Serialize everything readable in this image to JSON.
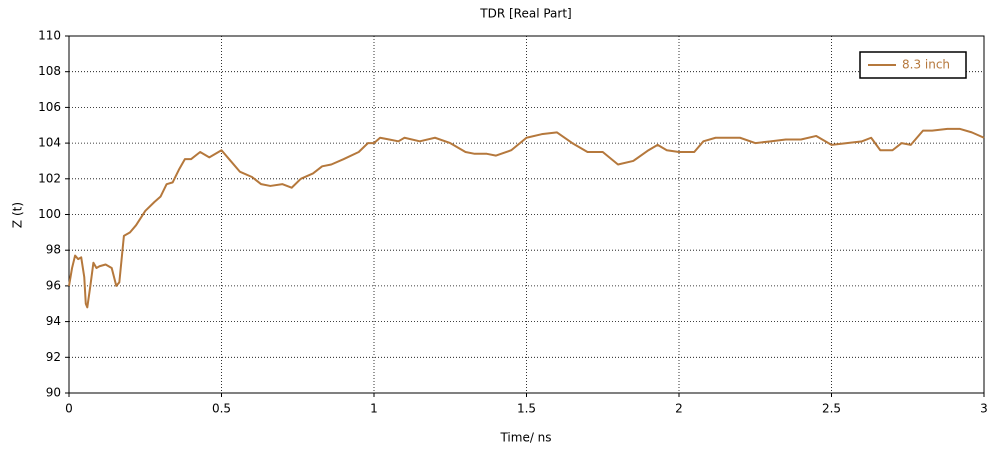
{
  "chart_data": {
    "type": "line",
    "title": "TDR [Real Part]",
    "x_label": "Time/ ns",
    "y_label": "Z (t)",
    "xlim": [
      0,
      3
    ],
    "ylim": [
      90,
      110
    ],
    "xticks": [
      0,
      0.5,
      1,
      1.5,
      2,
      2.5,
      3
    ],
    "yticks": [
      90,
      92,
      94,
      96,
      98,
      100,
      102,
      104,
      106,
      108,
      110
    ],
    "grid": true,
    "legend": "top-right",
    "x": [
      0,
      0.01,
      0.02,
      0.03,
      0.04,
      0.05,
      0.055,
      0.06,
      0.07,
      0.08,
      0.09,
      0.1,
      0.12,
      0.14,
      0.155,
      0.165,
      0.18,
      0.2,
      0.22,
      0.25,
      0.28,
      0.3,
      0.32,
      0.34,
      0.36,
      0.38,
      0.4,
      0.43,
      0.46,
      0.5,
      0.53,
      0.56,
      0.6,
      0.63,
      0.66,
      0.7,
      0.73,
      0.76,
      0.8,
      0.83,
      0.86,
      0.9,
      0.95,
      0.98,
      1.0,
      1.02,
      1.05,
      1.08,
      1.1,
      1.15,
      1.2,
      1.25,
      1.3,
      1.33,
      1.37,
      1.4,
      1.45,
      1.5,
      1.55,
      1.6,
      1.65,
      1.7,
      1.75,
      1.8,
      1.85,
      1.9,
      1.93,
      1.96,
      2.0,
      2.05,
      2.08,
      2.12,
      2.2,
      2.25,
      2.3,
      2.35,
      2.4,
      2.45,
      2.5,
      2.55,
      2.6,
      2.63,
      2.66,
      2.7,
      2.73,
      2.76,
      2.8,
      2.83,
      2.88,
      2.92,
      2.96,
      3.0
    ],
    "series": [
      {
        "name": "8.3 inch",
        "color": "#b5783c",
        "values": [
          96.0,
          97.0,
          97.7,
          97.5,
          97.6,
          96.5,
          95.0,
          94.8,
          96.0,
          97.3,
          97.0,
          97.1,
          97.2,
          97.0,
          96.0,
          96.2,
          98.8,
          99.0,
          99.4,
          100.2,
          100.7,
          101.0,
          101.7,
          101.8,
          102.5,
          103.1,
          103.1,
          103.5,
          103.2,
          103.6,
          103.0,
          102.4,
          102.1,
          101.7,
          101.6,
          101.7,
          101.5,
          102.0,
          102.3,
          102.7,
          102.8,
          103.1,
          103.5,
          104.0,
          104.0,
          104.3,
          104.2,
          104.1,
          104.3,
          104.1,
          104.3,
          104.0,
          103.5,
          103.4,
          103.4,
          103.3,
          103.6,
          104.3,
          104.5,
          104.6,
          104.0,
          103.5,
          103.5,
          102.8,
          103.0,
          103.6,
          103.9,
          103.6,
          103.5,
          103.5,
          104.1,
          104.3,
          104.3,
          104.0,
          104.1,
          104.2,
          104.2,
          104.4,
          103.9,
          104.0,
          104.1,
          104.3,
          103.6,
          103.6,
          104.0,
          103.9,
          104.7,
          104.7,
          104.8,
          104.8,
          104.6,
          104.3
        ]
      }
    ]
  }
}
